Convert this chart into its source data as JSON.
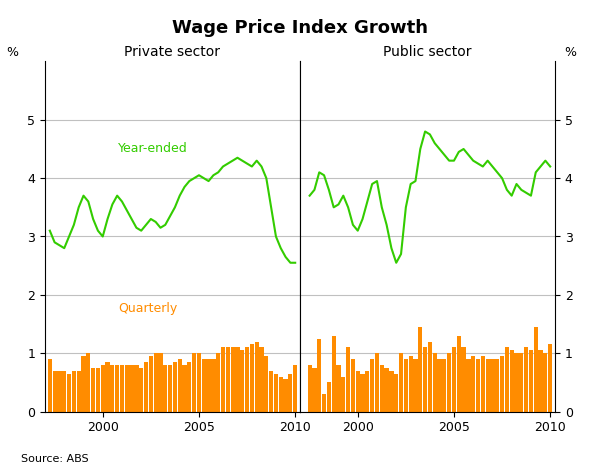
{
  "title": "Wage Price Index Growth",
  "source": "Source: ABS",
  "line_color": "#33cc00",
  "bar_color": "#ff8c00",
  "bg_color": "#ffffff",
  "grid_color": "#c0c0c0",
  "ylim": [
    0,
    6
  ],
  "yticks": [
    0,
    1,
    2,
    3,
    4,
    5
  ],
  "private_label": "Private sector",
  "public_label": "Public sector",
  "year_ended_label": "Year-ended",
  "quarterly_label": "Quarterly",
  "private_ye_x": [
    1997.25,
    1997.5,
    1997.75,
    1998.0,
    1998.25,
    1998.5,
    1998.75,
    1999.0,
    1999.25,
    1999.5,
    1999.75,
    2000.0,
    2000.25,
    2000.5,
    2000.75,
    2001.0,
    2001.25,
    2001.5,
    2001.75,
    2002.0,
    2002.25,
    2002.5,
    2002.75,
    2003.0,
    2003.25,
    2003.5,
    2003.75,
    2004.0,
    2004.25,
    2004.5,
    2004.75,
    2005.0,
    2005.25,
    2005.5,
    2005.75,
    2006.0,
    2006.25,
    2006.5,
    2006.75,
    2007.0,
    2007.25,
    2007.5,
    2007.75,
    2008.0,
    2008.25,
    2008.5,
    2008.75,
    2009.0,
    2009.25,
    2009.5,
    2009.75,
    2010.0
  ],
  "private_ye_y": [
    3.1,
    2.9,
    2.85,
    2.8,
    3.0,
    3.2,
    3.5,
    3.7,
    3.6,
    3.3,
    3.1,
    3.0,
    3.3,
    3.55,
    3.7,
    3.6,
    3.45,
    3.3,
    3.15,
    3.1,
    3.2,
    3.3,
    3.25,
    3.15,
    3.2,
    3.35,
    3.5,
    3.7,
    3.85,
    3.95,
    4.0,
    4.05,
    4.0,
    3.95,
    4.05,
    4.1,
    4.2,
    4.25,
    4.3,
    4.35,
    4.3,
    4.25,
    4.2,
    4.3,
    4.2,
    4.0,
    3.5,
    3.0,
    2.8,
    2.65,
    2.55,
    2.55
  ],
  "public_ye_x": [
    1997.5,
    1997.75,
    1998.0,
    1998.25,
    1998.5,
    1998.75,
    1999.0,
    1999.25,
    1999.5,
    1999.75,
    2000.0,
    2000.25,
    2000.5,
    2000.75,
    2001.0,
    2001.25,
    2001.5,
    2001.75,
    2002.0,
    2002.25,
    2002.5,
    2002.75,
    2003.0,
    2003.25,
    2003.5,
    2003.75,
    2004.0,
    2004.25,
    2004.5,
    2004.75,
    2005.0,
    2005.25,
    2005.5,
    2005.75,
    2006.0,
    2006.25,
    2006.5,
    2006.75,
    2007.0,
    2007.25,
    2007.5,
    2007.75,
    2008.0,
    2008.25,
    2008.5,
    2008.75,
    2009.0,
    2009.25,
    2009.5,
    2009.75,
    2010.0
  ],
  "public_ye_y": [
    3.7,
    3.8,
    4.1,
    4.05,
    3.8,
    3.5,
    3.55,
    3.7,
    3.5,
    3.2,
    3.1,
    3.3,
    3.6,
    3.9,
    3.95,
    3.5,
    3.2,
    2.8,
    2.55,
    2.7,
    3.5,
    3.9,
    3.95,
    4.5,
    4.8,
    4.75,
    4.6,
    4.5,
    4.4,
    4.3,
    4.3,
    4.45,
    4.5,
    4.4,
    4.3,
    4.25,
    4.2,
    4.3,
    4.2,
    4.1,
    4.0,
    3.8,
    3.7,
    3.9,
    3.8,
    3.75,
    3.7,
    4.1,
    4.2,
    4.3,
    4.2
  ],
  "private_q_x": [
    1997.25,
    1997.5,
    1997.75,
    1998.0,
    1998.25,
    1998.5,
    1998.75,
    1999.0,
    1999.25,
    1999.5,
    1999.75,
    2000.0,
    2000.25,
    2000.5,
    2000.75,
    2001.0,
    2001.25,
    2001.5,
    2001.75,
    2002.0,
    2002.25,
    2002.5,
    2002.75,
    2003.0,
    2003.25,
    2003.5,
    2003.75,
    2004.0,
    2004.25,
    2004.5,
    2004.75,
    2005.0,
    2005.25,
    2005.5,
    2005.75,
    2006.0,
    2006.25,
    2006.5,
    2006.75,
    2007.0,
    2007.25,
    2007.5,
    2007.75,
    2008.0,
    2008.25,
    2008.5,
    2008.75,
    2009.0,
    2009.25,
    2009.5,
    2009.75,
    2010.0
  ],
  "private_q_y": [
    0.9,
    0.7,
    0.7,
    0.7,
    0.65,
    0.7,
    0.7,
    0.95,
    1.0,
    0.75,
    0.75,
    0.8,
    0.85,
    0.8,
    0.8,
    0.8,
    0.8,
    0.8,
    0.8,
    0.75,
    0.85,
    0.95,
    1.0,
    1.0,
    0.8,
    0.8,
    0.85,
    0.9,
    0.8,
    0.85,
    1.0,
    1.0,
    0.9,
    0.9,
    0.9,
    1.0,
    1.1,
    1.1,
    1.1,
    1.1,
    1.05,
    1.1,
    1.15,
    1.2,
    1.1,
    0.95,
    0.7,
    0.65,
    0.6,
    0.55,
    0.65,
    0.8
  ],
  "public_q_x": [
    1997.5,
    1997.75,
    1998.0,
    1998.25,
    1998.5,
    1998.75,
    1999.0,
    1999.25,
    1999.5,
    1999.75,
    2000.0,
    2000.25,
    2000.5,
    2000.75,
    2001.0,
    2001.25,
    2001.5,
    2001.75,
    2002.0,
    2002.25,
    2002.5,
    2002.75,
    2003.0,
    2003.25,
    2003.5,
    2003.75,
    2004.0,
    2004.25,
    2004.5,
    2004.75,
    2005.0,
    2005.25,
    2005.5,
    2005.75,
    2006.0,
    2006.25,
    2006.5,
    2006.75,
    2007.0,
    2007.25,
    2007.5,
    2007.75,
    2008.0,
    2008.25,
    2008.5,
    2008.75,
    2009.0,
    2009.25,
    2009.5,
    2009.75,
    2010.0
  ],
  "public_q_y": [
    0.8,
    0.75,
    1.25,
    0.3,
    0.5,
    1.3,
    0.8,
    0.6,
    1.1,
    0.9,
    0.7,
    0.65,
    0.7,
    0.9,
    1.0,
    0.8,
    0.75,
    0.7,
    0.65,
    1.0,
    0.9,
    0.95,
    0.9,
    1.45,
    1.1,
    1.2,
    1.0,
    0.9,
    0.9,
    1.0,
    1.1,
    1.3,
    1.1,
    0.9,
    0.95,
    0.9,
    0.95,
    0.9,
    0.9,
    0.9,
    0.95,
    1.1,
    1.05,
    1.0,
    1.0,
    1.1,
    1.05,
    1.45,
    1.05,
    1.0,
    1.15
  ]
}
